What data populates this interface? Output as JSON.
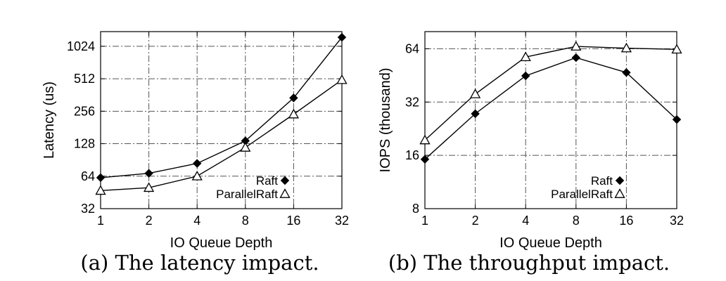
{
  "chart_data": [
    {
      "type": "line",
      "caption": "(a) The latency impact.",
      "xlabel": "IO Queue Depth",
      "ylabel": "Latency (us)",
      "x": [
        1,
        2,
        4,
        8,
        16,
        32
      ],
      "x_ticks": [
        "1",
        "2",
        "4",
        "8",
        "16",
        "32"
      ],
      "x_scale": "log2",
      "y_scale": "log2",
      "ylim": [
        32,
        1400
      ],
      "y_ticks": [
        32,
        64,
        128,
        256,
        512,
        1024
      ],
      "y_tick_labels": [
        "32",
        "64",
        "128",
        "256",
        "512",
        "1024"
      ],
      "grid": true,
      "legend_position": "bottom-right",
      "series": [
        {
          "name": "Raft",
          "marker": "filled-diamond",
          "values": [
            62,
            68,
            84,
            136,
            340,
            1240
          ]
        },
        {
          "name": "ParallelRaft",
          "marker": "open-triangle",
          "values": [
            47,
            50,
            64,
            118,
            240,
            500
          ]
        }
      ]
    },
    {
      "type": "line",
      "caption": "(b) The throughput impact.",
      "xlabel": "IO Queue Depth",
      "ylabel": "IOPS (thousand)",
      "x": [
        1,
        2,
        4,
        8,
        16,
        32
      ],
      "x_ticks": [
        "1",
        "2",
        "4",
        "8",
        "16",
        "32"
      ],
      "x_scale": "log2",
      "y_scale": "log2",
      "ylim": [
        8,
        80
      ],
      "y_ticks": [
        8,
        16,
        32,
        64
      ],
      "y_tick_labels": [
        "8",
        "16",
        "32",
        "64"
      ],
      "grid": true,
      "legend_position": "bottom-right",
      "series": [
        {
          "name": "Raft",
          "marker": "filled-diamond",
          "values": [
            15.2,
            27.5,
            45,
            57,
            47,
            25.5
          ]
        },
        {
          "name": "ParallelRaft",
          "marker": "open-triangle",
          "values": [
            19.5,
            35.5,
            57.5,
            66,
            64.5,
            63.5
          ]
        }
      ]
    }
  ]
}
